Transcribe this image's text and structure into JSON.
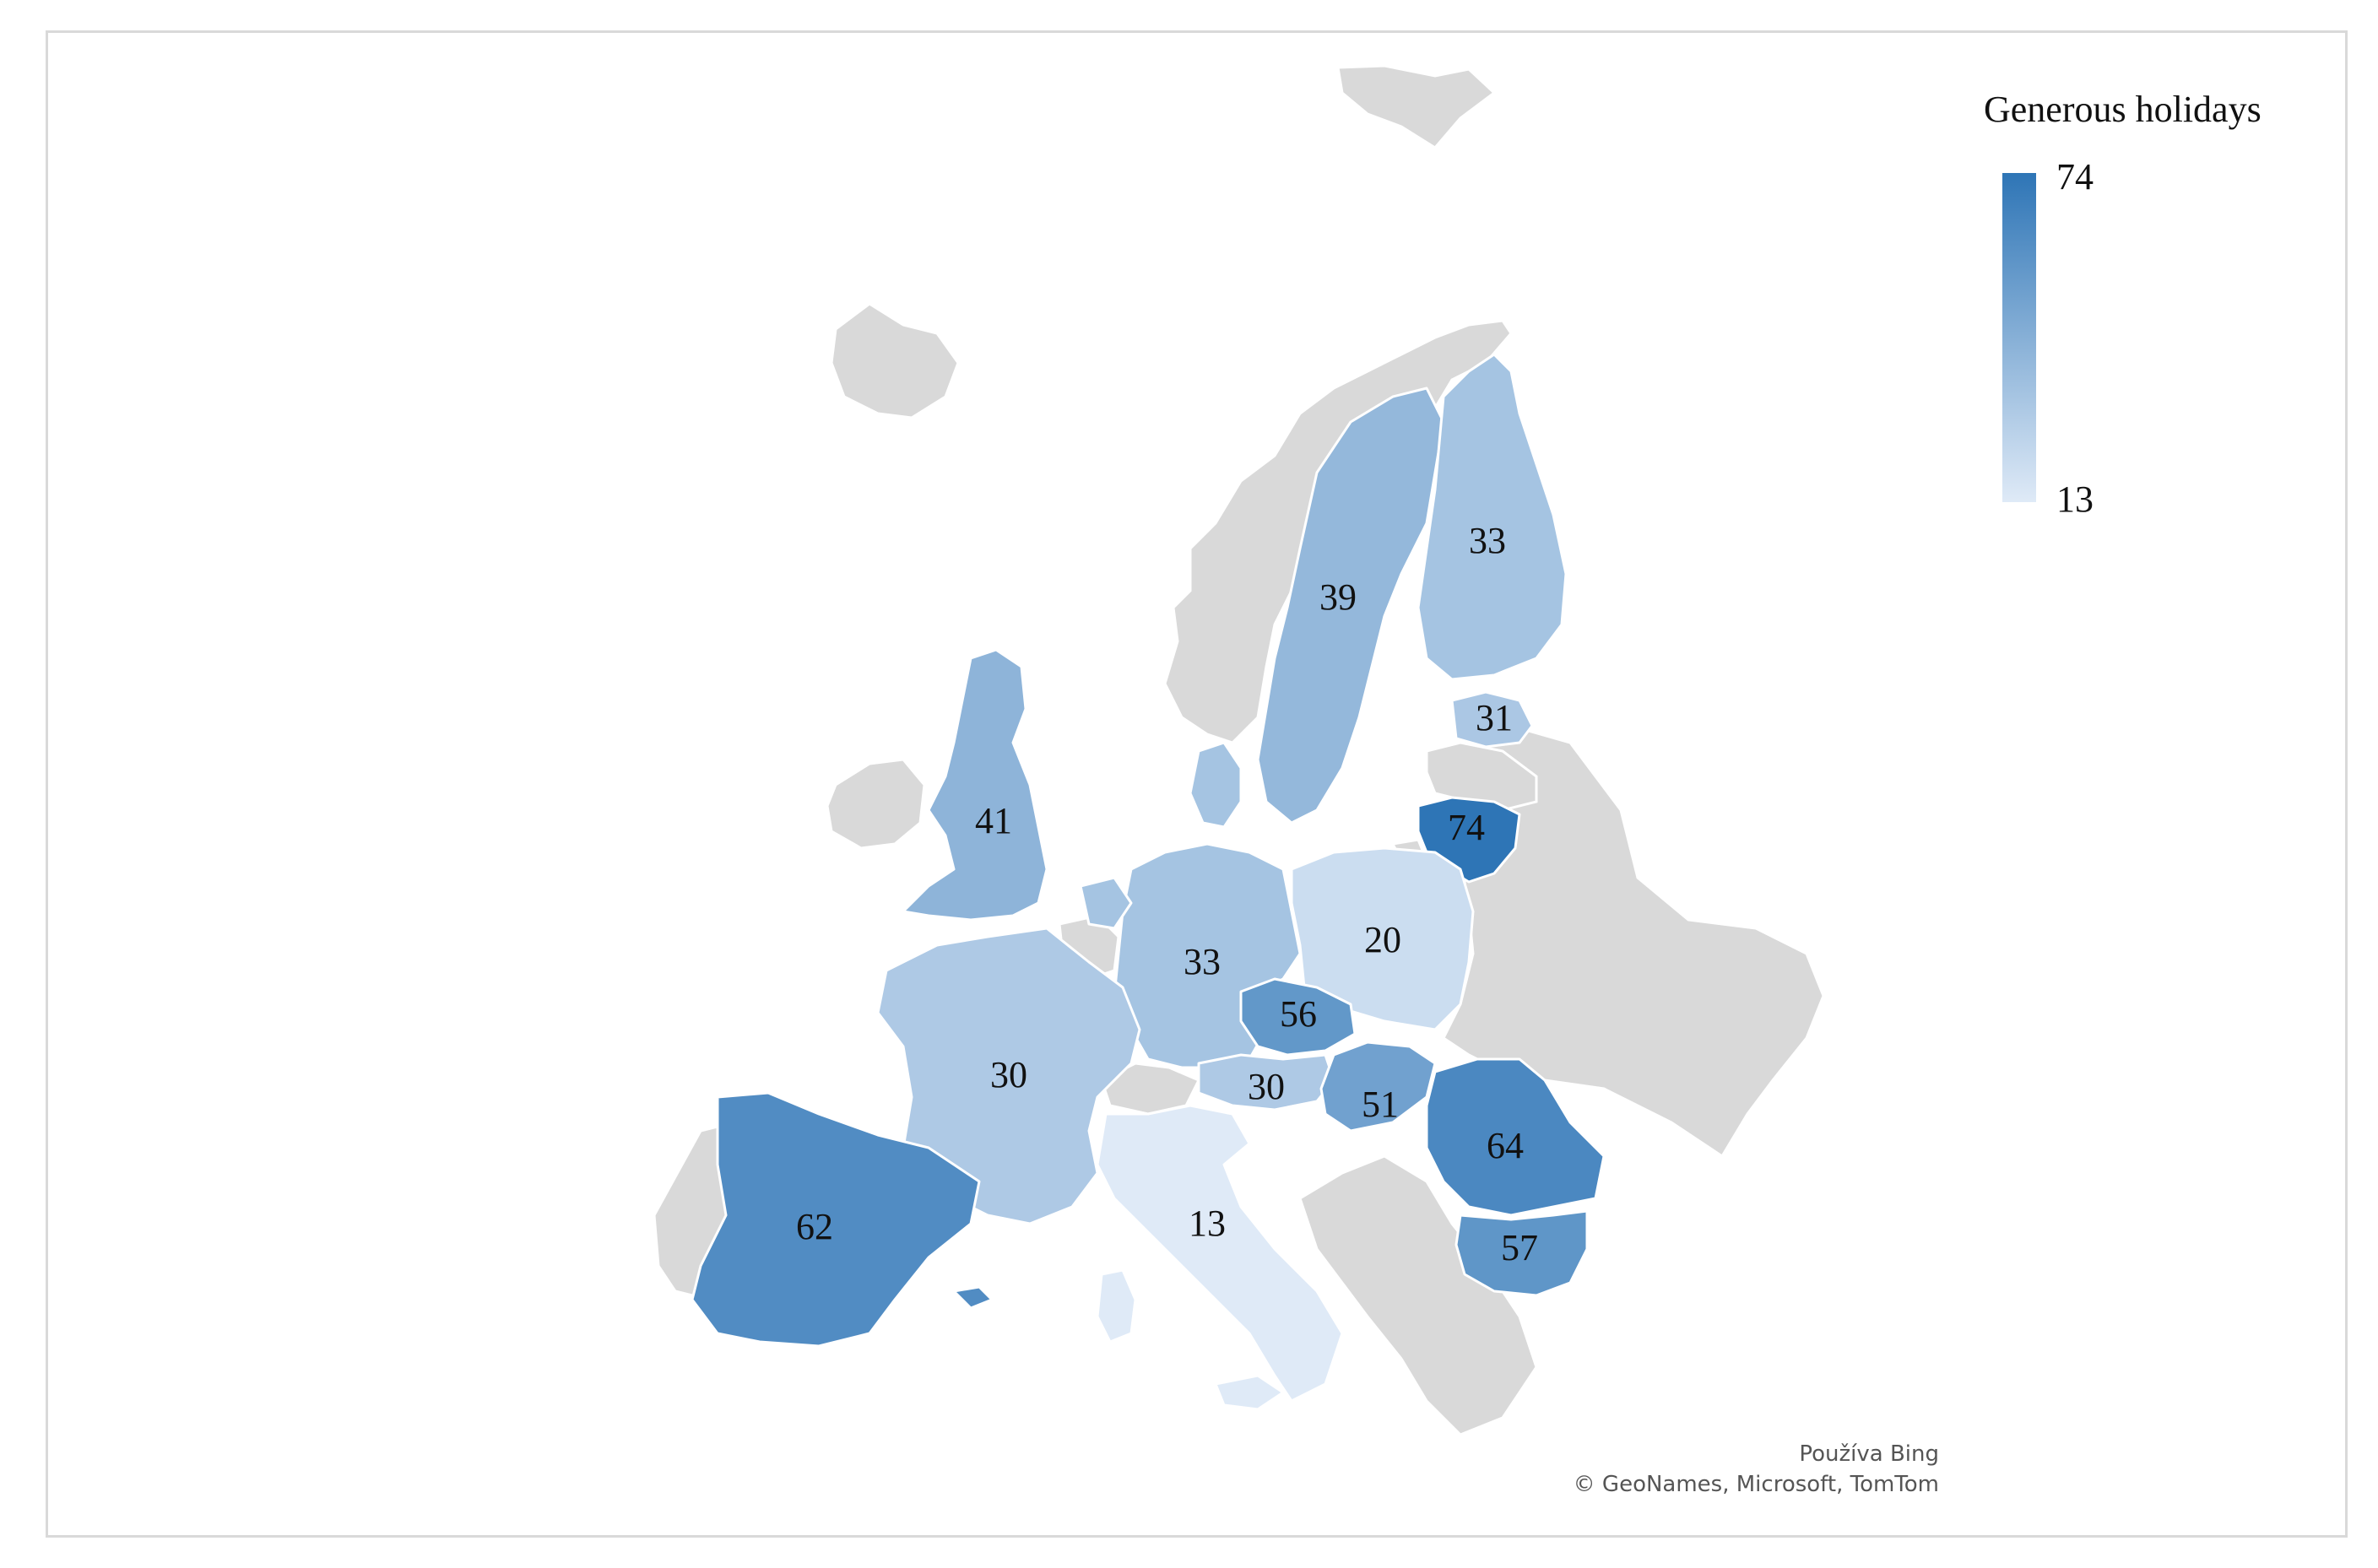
{
  "legend": {
    "title": "Generous holidays",
    "max_label": "74",
    "min_label": "13",
    "min_value": 13,
    "max_value": 74,
    "color_low": "#dfeaf7",
    "color_high": "#2e75b6"
  },
  "no_data_color": "#d9d9d9",
  "credits": {
    "line1": "Používa Bing",
    "line2": "© GeoNames, Microsoft, TomTom"
  },
  "countries": [
    {
      "key": "lithuania",
      "label": "74",
      "value": 74
    },
    {
      "key": "romania",
      "label": "64",
      "value": 64
    },
    {
      "key": "spain",
      "label": "62",
      "value": 62
    },
    {
      "key": "bulgaria",
      "label": "57",
      "value": 57
    },
    {
      "key": "czechia",
      "label": "56",
      "value": 56
    },
    {
      "key": "hungary",
      "label": "51",
      "value": 51
    },
    {
      "key": "uk",
      "label": "41",
      "value": 41
    },
    {
      "key": "sweden",
      "label": "39",
      "value": 39
    },
    {
      "key": "germany",
      "label": "33",
      "value": 33
    },
    {
      "key": "finland",
      "label": "33",
      "value": 33
    },
    {
      "key": "estonia",
      "label": "31",
      "value": 31
    },
    {
      "key": "france",
      "label": "30",
      "value": 30
    },
    {
      "key": "austria",
      "label": "30",
      "value": 30
    },
    {
      "key": "poland",
      "label": "20",
      "value": 20
    },
    {
      "key": "italy",
      "label": "13",
      "value": 13
    }
  ]
}
